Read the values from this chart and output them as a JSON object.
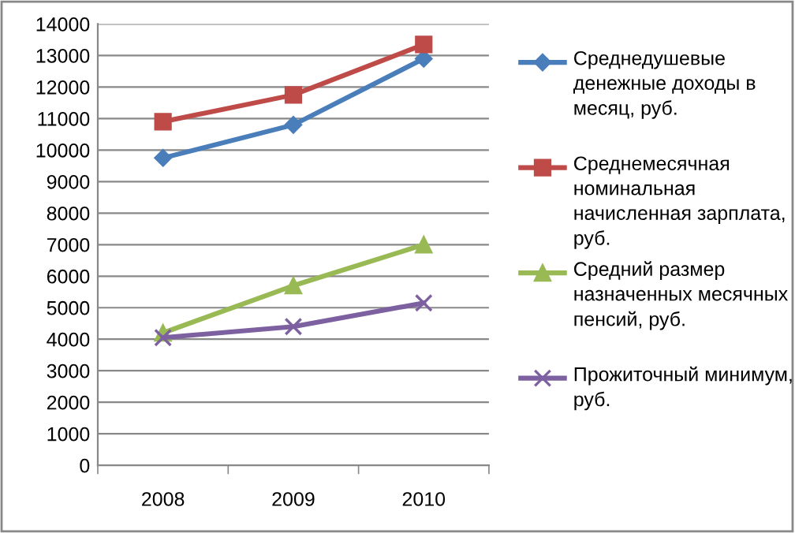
{
  "chart_data": {
    "type": "line",
    "categories": [
      "2008",
      "2009",
      "2010"
    ],
    "series": [
      {
        "name": "Среднедушевые денежные доходы в месяц, руб.",
        "color": "#4a7ebb",
        "marker": "diamond",
        "values": [
          9750,
          10800,
          12900
        ]
      },
      {
        "name": "Среднемесячная номинальная начисленная зарплата, руб.",
        "color": "#be4b48",
        "marker": "square",
        "values": [
          10900,
          11750,
          13350
        ]
      },
      {
        "name": "Средний размер назначенных месячных пенсий, руб.",
        "color": "#98b954",
        "marker": "triangle",
        "values": [
          4200,
          5700,
          7000
        ]
      },
      {
        "name": "Прожиточный минимум, руб.",
        "color": "#7d60a0",
        "marker": "cross",
        "values": [
          4050,
          4400,
          5150
        ]
      }
    ],
    "ylim": [
      0,
      14000
    ],
    "yticks": [
      0,
      1000,
      2000,
      3000,
      4000,
      5000,
      6000,
      7000,
      8000,
      9000,
      10000,
      11000,
      12000,
      13000,
      14000
    ],
    "grid": "y",
    "legend": "right",
    "line_style": "solid"
  }
}
